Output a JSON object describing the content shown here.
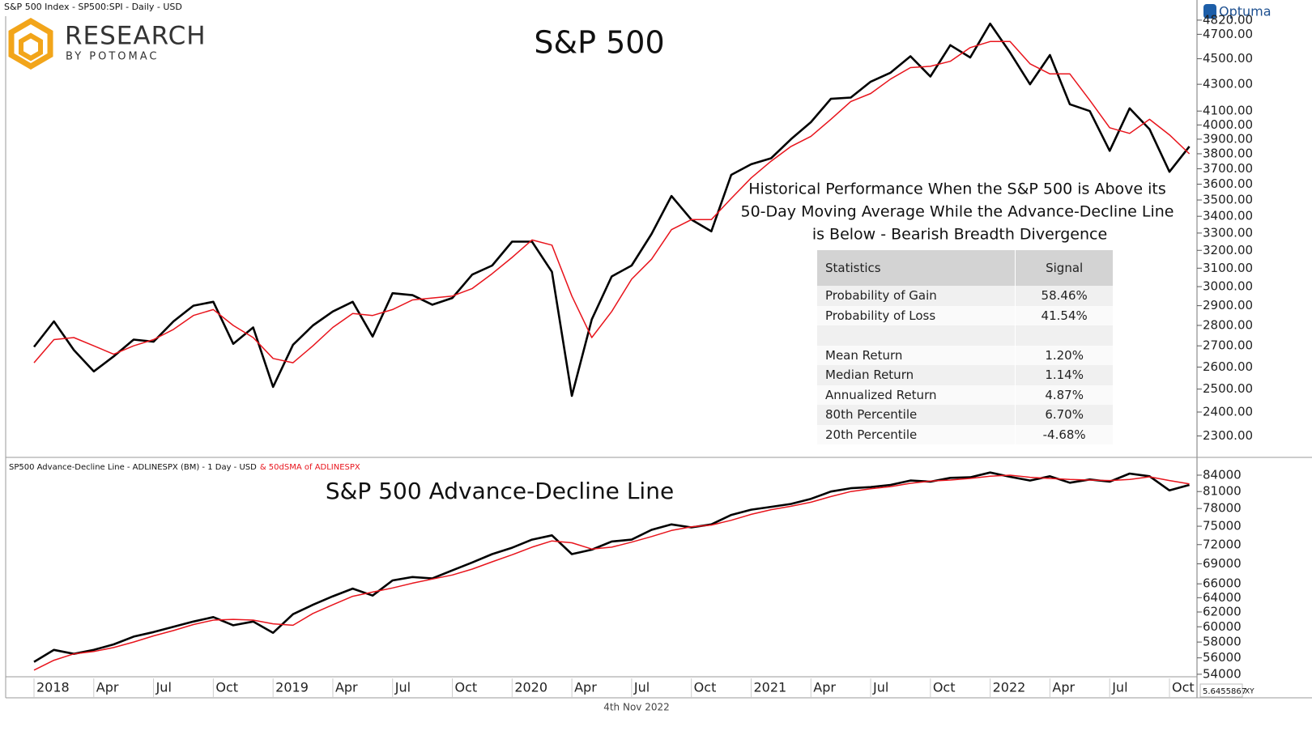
{
  "brand": {
    "name": "RESEARCH",
    "tagline": "BY POTOMAC",
    "vendor": "Optuma"
  },
  "footer": {
    "date": "4th Nov 2022",
    "scale": "5.6455867",
    "mode": "XY"
  },
  "chart_data": [
    {
      "type": "line",
      "header": "S&P 500 Index  -  SP500:SPI - Daily - USD",
      "title": "S&P 500",
      "annotation": [
        "Historical Performance When the S&P 500 is Above its",
        "50-Day Moving Average While the Advance-Decline Line",
        "is Below - Bearish Breadth Divergence"
      ],
      "table": {
        "header": [
          "Statistics",
          "Signal"
        ],
        "rows": [
          [
            "Probability of Gain",
            "58.46%"
          ],
          [
            "Probability of Loss",
            "41.54%"
          ],
          [
            "Mean Return",
            "1.20%"
          ],
          [
            "Median Return",
            "1.14%"
          ],
          [
            "Annualized Return",
            "4.87%"
          ],
          [
            "80th Percentile",
            "6.70%"
          ],
          [
            "20th Percentile",
            "-4.68%"
          ]
        ]
      },
      "x": [
        "2018-01",
        "2018-02",
        "2018-03",
        "2018-04",
        "2018-05",
        "2018-06",
        "2018-07",
        "2018-08",
        "2018-09",
        "2018-10",
        "2018-11",
        "2018-12",
        "2019-01",
        "2019-02",
        "2019-03",
        "2019-04",
        "2019-05",
        "2019-06",
        "2019-07",
        "2019-08",
        "2019-09",
        "2019-10",
        "2019-11",
        "2019-12",
        "2020-01",
        "2020-02",
        "2020-03",
        "2020-04",
        "2020-05",
        "2020-06",
        "2020-07",
        "2020-08",
        "2020-09",
        "2020-10",
        "2020-11",
        "2020-12",
        "2021-01",
        "2021-02",
        "2021-03",
        "2021-04",
        "2021-05",
        "2021-06",
        "2021-07",
        "2021-08",
        "2021-09",
        "2021-10",
        "2021-11",
        "2021-12",
        "2022-01",
        "2022-02",
        "2022-03",
        "2022-04",
        "2022-05",
        "2022-06",
        "2022-07",
        "2022-08",
        "2022-09",
        "2022-10",
        "2022-11"
      ],
      "series": [
        {
          "color": "#000000",
          "values": [
            2695,
            2820,
            2680,
            2580,
            2650,
            2730,
            2720,
            2820,
            2900,
            2920,
            2710,
            2790,
            2510,
            2705,
            2800,
            2870,
            2920,
            2745,
            2965,
            2955,
            2905,
            2940,
            3065,
            3115,
            3250,
            3250,
            3080,
            2470,
            2830,
            3055,
            3115,
            3295,
            3525,
            3380,
            3310,
            3660,
            3730,
            3770,
            3900,
            4020,
            4190,
            4200,
            4320,
            4390,
            4520,
            4360,
            4610,
            4510,
            4790,
            4550,
            4300,
            4530,
            4150,
            4100,
            3820,
            4120,
            3970,
            3680,
            3850
          ]
        },
        {
          "color": "#e8141c",
          "values": [
            2620,
            2730,
            2740,
            2700,
            2660,
            2700,
            2730,
            2780,
            2850,
            2880,
            2800,
            2740,
            2640,
            2620,
            2700,
            2790,
            2860,
            2850,
            2880,
            2930,
            2940,
            2950,
            2990,
            3070,
            3160,
            3260,
            3230,
            2950,
            2740,
            2870,
            3040,
            3150,
            3320,
            3380,
            3380,
            3510,
            3640,
            3750,
            3850,
            3920,
            4040,
            4170,
            4230,
            4340,
            4430,
            4440,
            4480,
            4590,
            4640,
            4640,
            4460,
            4380,
            4380,
            4180,
            3980,
            3940,
            4040,
            3930,
            3800
          ]
        }
      ],
      "log_scale": true,
      "ylim": [
        2230,
        4840
      ],
      "yticks": [
        {
          "value": 2300,
          "label": "2300.00"
        },
        {
          "value": 2400,
          "label": "2400.00"
        },
        {
          "value": 2500,
          "label": "2500.00"
        },
        {
          "value": 2600,
          "label": "2600.00"
        },
        {
          "value": 2700,
          "label": "2700.00"
        },
        {
          "value": 2800,
          "label": "2800.00"
        },
        {
          "value": 2900,
          "label": "2900.00"
        },
        {
          "value": 3000,
          "label": "3000.00"
        },
        {
          "value": 3100,
          "label": "3100.00"
        },
        {
          "value": 3200,
          "label": "3200.00"
        },
        {
          "value": 3300,
          "label": "3300.00"
        },
        {
          "value": 3400,
          "label": "3400.00"
        },
        {
          "value": 3500,
          "label": "3500.00"
        },
        {
          "value": 3600,
          "label": "3600.00"
        },
        {
          "value": 3700,
          "label": "3700.00"
        },
        {
          "value": 3800,
          "label": "3800.00"
        },
        {
          "value": 3900,
          "label": "3900.00"
        },
        {
          "value": 4000,
          "label": "4000.00"
        },
        {
          "value": 4100,
          "label": "4100.00"
        },
        {
          "value": 4300,
          "label": "4300.00"
        },
        {
          "value": 4500,
          "label": "4500.00"
        },
        {
          "value": 4700,
          "label": "4700.00"
        },
        {
          "value": 4820,
          "label": "4820.00"
        }
      ]
    },
    {
      "type": "line",
      "title": "S&P 500 Advance-Decline Line",
      "x": [
        "2018-01",
        "2018-02",
        "2018-03",
        "2018-04",
        "2018-05",
        "2018-06",
        "2018-07",
        "2018-08",
        "2018-09",
        "2018-10",
        "2018-11",
        "2018-12",
        "2019-01",
        "2019-02",
        "2019-03",
        "2019-04",
        "2019-05",
        "2019-06",
        "2019-07",
        "2019-08",
        "2019-09",
        "2019-10",
        "2019-11",
        "2019-12",
        "2020-01",
        "2020-02",
        "2020-03",
        "2020-04",
        "2020-05",
        "2020-06",
        "2020-07",
        "2020-08",
        "2020-09",
        "2020-10",
        "2020-11",
        "2020-12",
        "2021-01",
        "2021-02",
        "2021-03",
        "2021-04",
        "2021-05",
        "2021-06",
        "2021-07",
        "2021-08",
        "2021-09",
        "2021-10",
        "2021-11",
        "2021-12",
        "2022-01",
        "2022-02",
        "2022-03",
        "2022-04",
        "2022-05",
        "2022-06",
        "2022-07",
        "2022-08",
        "2022-09",
        "2022-10",
        "2022-11"
      ],
      "series": [
        {
          "name": "SP500 Advance-Decline Line - ADLINESPX (BM) - 1 Day - USD",
          "color": "#000000",
          "values": [
            55500,
            57000,
            56500,
            57000,
            57700,
            58700,
            59300,
            60000,
            60700,
            61300,
            60200,
            60700,
            59200,
            61700,
            63000,
            64200,
            65300,
            64300,
            66500,
            67000,
            66800,
            68000,
            69200,
            70500,
            71500,
            72800,
            73500,
            70500,
            71200,
            72500,
            72800,
            74400,
            75300,
            74800,
            75300,
            76900,
            77800,
            78300,
            78800,
            79700,
            81000,
            81600,
            81800,
            82200,
            83000,
            82800,
            83500,
            83600,
            84500,
            83700,
            83000,
            83800,
            82600,
            83200,
            82800,
            84300,
            83800,
            81200,
            82200
          ]
        },
        {
          "name": "& 50dSMA of ADLINESPX",
          "color": "#e8141c",
          "values": [
            54500,
            55700,
            56500,
            56800,
            57300,
            58000,
            58800,
            59500,
            60300,
            60900,
            61000,
            60900,
            60400,
            60200,
            61800,
            63000,
            64200,
            64800,
            65400,
            66100,
            66700,
            67300,
            68200,
            69300,
            70400,
            71600,
            72600,
            72300,
            71300,
            71600,
            72400,
            73300,
            74300,
            74900,
            75200,
            76000,
            77000,
            77800,
            78400,
            79100,
            80100,
            81000,
            81500,
            81900,
            82500,
            82900,
            83100,
            83400,
            83800,
            84000,
            83600,
            83400,
            83200,
            83100,
            83000,
            83200,
            83700,
            83000,
            82400
          ]
        }
      ],
      "log_scale": true,
      "ylim": [
        53700,
        86600
      ],
      "yticks": [
        84000,
        81000,
        78000,
        75000,
        72000,
        69000,
        66000,
        64000,
        62000,
        60000,
        58000,
        56000,
        54000
      ],
      "xticks": [
        {
          "value": "2018-01",
          "label": "2018"
        },
        {
          "value": "2018-04",
          "label": "Apr"
        },
        {
          "value": "2018-07",
          "label": "Jul"
        },
        {
          "value": "2018-10",
          "label": "Oct"
        },
        {
          "value": "2019-01",
          "label": "2019"
        },
        {
          "value": "2019-04",
          "label": "Apr"
        },
        {
          "value": "2019-07",
          "label": "Jul"
        },
        {
          "value": "2019-10",
          "label": "Oct"
        },
        {
          "value": "2020-01",
          "label": "2020"
        },
        {
          "value": "2020-04",
          "label": "Apr"
        },
        {
          "value": "2020-07",
          "label": "Jul"
        },
        {
          "value": "2020-10",
          "label": "Oct"
        },
        {
          "value": "2021-01",
          "label": "2021"
        },
        {
          "value": "2021-04",
          "label": "Apr"
        },
        {
          "value": "2021-07",
          "label": "Jul"
        },
        {
          "value": "2021-10",
          "label": "Oct"
        },
        {
          "value": "2022-01",
          "label": "2022"
        },
        {
          "value": "2022-04",
          "label": "Apr"
        },
        {
          "value": "2022-07",
          "label": "Jul"
        },
        {
          "value": "2022-10",
          "label": "Oct"
        }
      ]
    }
  ]
}
